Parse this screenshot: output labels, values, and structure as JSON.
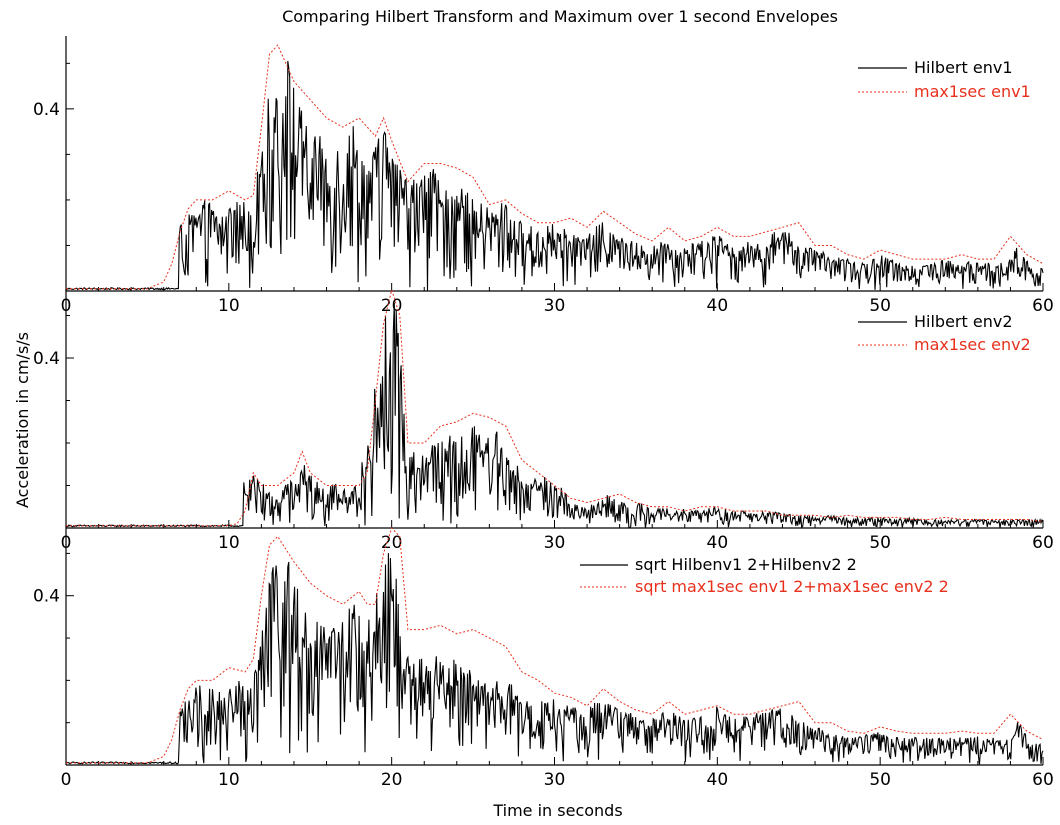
{
  "chart_data": {
    "type": "line",
    "title": "Comparing Hilbert Transform and Maximum over 1 second Envelopes",
    "xlabel": "Time in seconds",
    "ylabel": "Acceleration in cm/s/s",
    "xlim": [
      0,
      60
    ],
    "xticks": [
      0,
      10,
      20,
      30,
      40,
      50,
      60
    ],
    "series_colors": {
      "hilbert": "#000000",
      "max": "#e8301c"
    },
    "panels": [
      {
        "ylim": [
          0,
          0.56
        ],
        "yticks": [
          0.4
        ],
        "legend": [
          "Hilbert env1",
          "max1sec env1"
        ],
        "max_env": {
          "x": [
            0,
            5,
            6,
            6.5,
            7,
            7.5,
            8,
            9,
            10,
            11,
            11.5,
            12,
            12.5,
            13,
            14,
            15,
            16,
            17,
            18,
            19,
            19.5,
            20,
            21,
            22,
            23,
            24,
            25,
            26,
            27,
            28,
            29,
            30,
            31,
            32,
            33,
            34,
            35,
            36,
            37,
            38,
            39,
            40,
            41,
            42,
            43,
            44,
            45,
            46,
            47,
            48,
            49,
            50,
            51,
            52,
            53,
            54,
            55,
            56,
            57,
            58,
            59,
            60
          ],
          "y": [
            0.005,
            0.005,
            0.02,
            0.06,
            0.13,
            0.18,
            0.2,
            0.2,
            0.22,
            0.2,
            0.21,
            0.36,
            0.52,
            0.54,
            0.46,
            0.42,
            0.38,
            0.36,
            0.38,
            0.34,
            0.38,
            0.33,
            0.24,
            0.28,
            0.28,
            0.27,
            0.25,
            0.19,
            0.2,
            0.17,
            0.15,
            0.15,
            0.16,
            0.14,
            0.175,
            0.15,
            0.125,
            0.11,
            0.14,
            0.11,
            0.12,
            0.14,
            0.12,
            0.12,
            0.13,
            0.14,
            0.15,
            0.1,
            0.1,
            0.08,
            0.07,
            0.09,
            0.08,
            0.07,
            0.07,
            0.07,
            0.08,
            0.07,
            0.07,
            0.12,
            0.08,
            0.06
          ]
        },
        "hilbert_peaks": {
          "x": [
            7.2,
            7.8,
            8.4,
            9.3,
            9.9,
            10.6,
            11.4,
            12.0,
            12.5,
            12.9,
            13.2,
            13.6,
            14.0,
            14.5,
            15.0,
            15.6,
            16.3,
            17.0,
            17.6,
            18.2,
            18.8,
            19.4,
            20.0,
            20.8,
            21.6,
            22.4,
            23.2,
            24.0,
            25.0,
            26.0,
            27.0,
            28.0,
            29.0,
            30.0,
            31.0,
            32.0,
            33.0,
            34.0,
            35.0,
            36.0,
            37.0,
            38.0,
            39.0,
            40.0,
            41.0,
            42.0,
            43.0,
            44.0,
            45.0,
            46.0,
            47.0,
            48.0,
            49.0,
            50.0,
            51.0,
            52.0,
            53.0,
            54.0,
            55.0,
            56.0,
            57.0,
            58.0,
            58.5,
            59.2,
            60.0
          ],
          "y": [
            0.15,
            0.18,
            0.2,
            0.19,
            0.18,
            0.2,
            0.21,
            0.3,
            0.45,
            0.5,
            0.42,
            0.53,
            0.45,
            0.4,
            0.36,
            0.34,
            0.32,
            0.36,
            0.38,
            0.33,
            0.3,
            0.4,
            0.31,
            0.26,
            0.25,
            0.28,
            0.22,
            0.25,
            0.2,
            0.19,
            0.2,
            0.15,
            0.14,
            0.15,
            0.13,
            0.12,
            0.16,
            0.12,
            0.11,
            0.1,
            0.12,
            0.1,
            0.11,
            0.13,
            0.1,
            0.11,
            0.12,
            0.14,
            0.11,
            0.09,
            0.08,
            0.07,
            0.06,
            0.08,
            0.07,
            0.06,
            0.06,
            0.07,
            0.06,
            0.07,
            0.06,
            0.07,
            0.11,
            0.06,
            0.05
          ]
        }
      },
      {
        "ylim": [
          0,
          0.56
        ],
        "yticks": [
          0.4
        ],
        "legend": [
          "Hilbert env2",
          "max1sec env2"
        ],
        "max_env": {
          "x": [
            0,
            9,
            10,
            10.5,
            11,
            11.5,
            12,
            13,
            14,
            14.5,
            15,
            16,
            17,
            18,
            18.5,
            19,
            19.5,
            20,
            20.5,
            21,
            22,
            23,
            24,
            25,
            26,
            27,
            28,
            29,
            30,
            31,
            32,
            33,
            34,
            35,
            36,
            37,
            38,
            39,
            40,
            41,
            42,
            43,
            44,
            45,
            46,
            47,
            48,
            49,
            50,
            51,
            52,
            53,
            54,
            55,
            56,
            57,
            58,
            59,
            60
          ],
          "y": [
            0.005,
            0.005,
            0.006,
            0.01,
            0.04,
            0.13,
            0.1,
            0.1,
            0.13,
            0.18,
            0.13,
            0.1,
            0.1,
            0.1,
            0.13,
            0.3,
            0.48,
            0.56,
            0.5,
            0.2,
            0.2,
            0.24,
            0.25,
            0.27,
            0.26,
            0.24,
            0.16,
            0.13,
            0.1,
            0.07,
            0.06,
            0.07,
            0.08,
            0.06,
            0.05,
            0.05,
            0.04,
            0.05,
            0.05,
            0.04,
            0.04,
            0.04,
            0.03,
            0.03,
            0.03,
            0.025,
            0.03,
            0.025,
            0.025,
            0.025,
            0.02,
            0.02,
            0.025,
            0.02,
            0.02,
            0.02,
            0.02,
            0.02,
            0.015
          ]
        },
        "hilbert_peaks": {
          "x": [
            11.2,
            11.6,
            12.2,
            12.8,
            13.4,
            14.1,
            14.6,
            15.2,
            15.9,
            16.6,
            17.4,
            18.1,
            18.6,
            19.0,
            19.3,
            19.6,
            19.9,
            20.2,
            20.5,
            20.9,
            21.5,
            22.1,
            22.7,
            23.3,
            23.9,
            24.5,
            25.1,
            25.7,
            26.3,
            26.9,
            27.5,
            28.2,
            29.0,
            29.7,
            30.4,
            31.1,
            31.8,
            32.5,
            33.2,
            33.9,
            34.6,
            35.3,
            36.0,
            36.7,
            37.4,
            38.1,
            38.8,
            39.5,
            40.2,
            40.9,
            41.6,
            42.3,
            43.0,
            44.0,
            45.0,
            46.0,
            47.0,
            48.0,
            49.0,
            50.0,
            51.0,
            52.0,
            53.0,
            54.0,
            55.0,
            56.0,
            57.0,
            58.0,
            59.0,
            60.0
          ],
          "y": [
            0.11,
            0.13,
            0.1,
            0.07,
            0.1,
            0.12,
            0.16,
            0.12,
            0.09,
            0.11,
            0.08,
            0.14,
            0.24,
            0.34,
            0.4,
            0.5,
            0.56,
            0.55,
            0.46,
            0.2,
            0.18,
            0.19,
            0.22,
            0.2,
            0.24,
            0.21,
            0.25,
            0.22,
            0.24,
            0.2,
            0.16,
            0.12,
            0.14,
            0.11,
            0.1,
            0.06,
            0.05,
            0.06,
            0.08,
            0.07,
            0.05,
            0.06,
            0.04,
            0.05,
            0.04,
            0.05,
            0.04,
            0.05,
            0.05,
            0.04,
            0.04,
            0.035,
            0.04,
            0.035,
            0.03,
            0.03,
            0.03,
            0.025,
            0.025,
            0.025,
            0.02,
            0.025,
            0.02,
            0.02,
            0.02,
            0.02,
            0.02,
            0.02,
            0.02,
            0.02
          ]
        }
      },
      {
        "ylim": [
          0,
          0.56
        ],
        "yticks": [
          0.4
        ],
        "legend": [
          "sqrt Hilbenv1 2+Hilbenv2 2",
          "sqrt max1sec env1 2+max1sec env2 2"
        ],
        "max_env": {
          "x": [
            0,
            5,
            6,
            6.5,
            7,
            7.5,
            8,
            9,
            10,
            11,
            11.5,
            12,
            12.5,
            13,
            14,
            15,
            16,
            17,
            18,
            18.5,
            19,
            19.5,
            20,
            20.5,
            21,
            22,
            23,
            24,
            25,
            26,
            27,
            28,
            29,
            30,
            31,
            32,
            33,
            34,
            35,
            36,
            37,
            38,
            39,
            40,
            41,
            42,
            43,
            44,
            45,
            46,
            47,
            48,
            49,
            50,
            51,
            52,
            53,
            54,
            55,
            56,
            57,
            58,
            59,
            60
          ],
          "y": [
            0.005,
            0.005,
            0.02,
            0.06,
            0.13,
            0.18,
            0.2,
            0.2,
            0.23,
            0.22,
            0.25,
            0.4,
            0.52,
            0.54,
            0.48,
            0.43,
            0.4,
            0.38,
            0.41,
            0.38,
            0.38,
            0.5,
            0.56,
            0.54,
            0.32,
            0.32,
            0.33,
            0.31,
            0.32,
            0.3,
            0.28,
            0.22,
            0.2,
            0.17,
            0.16,
            0.14,
            0.18,
            0.15,
            0.13,
            0.12,
            0.15,
            0.12,
            0.13,
            0.14,
            0.12,
            0.12,
            0.13,
            0.14,
            0.15,
            0.1,
            0.1,
            0.08,
            0.075,
            0.09,
            0.08,
            0.075,
            0.075,
            0.075,
            0.08,
            0.075,
            0.075,
            0.12,
            0.08,
            0.06
          ]
        },
        "hilbert_peaks": {
          "x": [
            7.2,
            7.8,
            8.4,
            9.3,
            9.9,
            10.6,
            11.4,
            12.0,
            12.5,
            12.9,
            13.2,
            13.6,
            14.0,
            14.5,
            15.0,
            15.6,
            16.3,
            17.0,
            17.6,
            18.2,
            18.8,
            19.2,
            19.6,
            19.9,
            20.2,
            20.6,
            21.0,
            21.6,
            22.4,
            23.2,
            24.0,
            25.0,
            26.0,
            27.0,
            28.0,
            29.0,
            30.0,
            31.0,
            32.0,
            33.0,
            34.0,
            35.0,
            36.0,
            37.0,
            38.0,
            39.0,
            40.0,
            41.0,
            42.0,
            43.0,
            44.0,
            45.0,
            46.0,
            47.0,
            48.0,
            49.0,
            50.0,
            51.0,
            52.0,
            53.0,
            54.0,
            55.0,
            56.0,
            57.0,
            58.0,
            58.5,
            59.2,
            60.0
          ],
          "y": [
            0.15,
            0.18,
            0.2,
            0.19,
            0.18,
            0.2,
            0.22,
            0.3,
            0.45,
            0.5,
            0.42,
            0.52,
            0.45,
            0.4,
            0.36,
            0.34,
            0.33,
            0.37,
            0.39,
            0.34,
            0.36,
            0.45,
            0.55,
            0.56,
            0.5,
            0.3,
            0.26,
            0.25,
            0.27,
            0.24,
            0.26,
            0.22,
            0.2,
            0.21,
            0.16,
            0.15,
            0.16,
            0.14,
            0.13,
            0.17,
            0.13,
            0.12,
            0.11,
            0.13,
            0.11,
            0.12,
            0.14,
            0.11,
            0.12,
            0.13,
            0.14,
            0.11,
            0.09,
            0.08,
            0.07,
            0.07,
            0.08,
            0.07,
            0.065,
            0.065,
            0.07,
            0.065,
            0.07,
            0.065,
            0.07,
            0.11,
            0.06,
            0.05
          ]
        }
      }
    ]
  }
}
